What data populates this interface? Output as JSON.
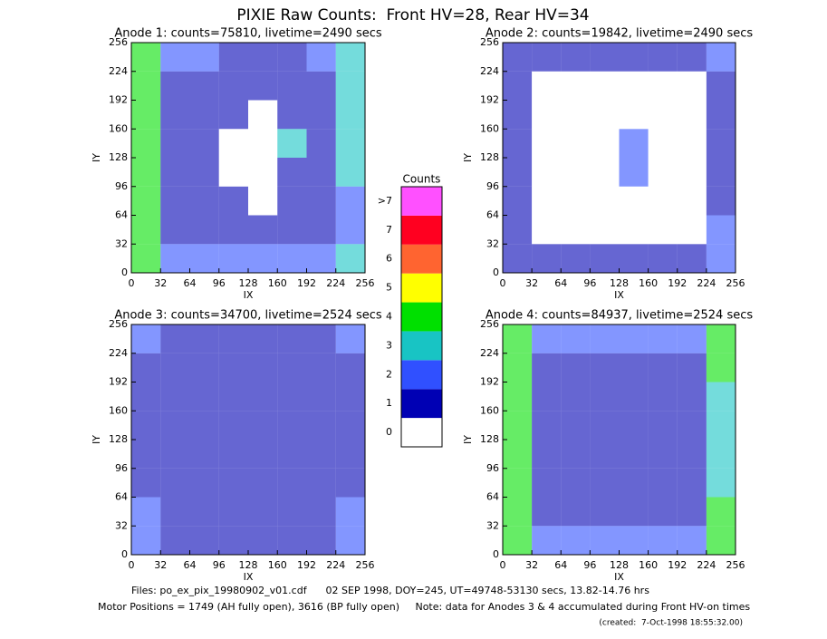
{
  "title": "PIXIE Raw Counts:  Front HV=28, Rear HV=34",
  "chart_data": [
    {
      "type": "heatmap",
      "title": "Anode 1: counts=75810, livetime=2490 secs",
      "xlabel": "IX",
      "ylabel": "IY",
      "xlim": [
        0,
        256
      ],
      "ylim": [
        0,
        256
      ],
      "xticks": [
        0,
        32,
        64,
        96,
        128,
        160,
        192,
        224,
        256
      ],
      "yticks": [
        0,
        32,
        64,
        96,
        128,
        160,
        192,
        224,
        256
      ],
      "z": [
        [
          4,
          2,
          2,
          2,
          2,
          2,
          2,
          3
        ],
        [
          4,
          1,
          1,
          1,
          1,
          1,
          1,
          2
        ],
        [
          4,
          1,
          1,
          1,
          0,
          1,
          1,
          2
        ],
        [
          4,
          1,
          1,
          0,
          0,
          1,
          1,
          3
        ],
        [
          4,
          1,
          1,
          0,
          0,
          3,
          1,
          3
        ],
        [
          4,
          1,
          1,
          1,
          0,
          1,
          1,
          3
        ],
        [
          4,
          1,
          1,
          1,
          1,
          1,
          1,
          3
        ],
        [
          4,
          2,
          2,
          1,
          1,
          1,
          2,
          3
        ]
      ]
    },
    {
      "type": "heatmap",
      "title": "Anode 2: counts=19842, livetime=2490 secs",
      "xlabel": "IX",
      "ylabel": "IY",
      "xlim": [
        0,
        256
      ],
      "ylim": [
        0,
        256
      ],
      "xticks": [
        0,
        32,
        64,
        96,
        128,
        160,
        192,
        224,
        256
      ],
      "yticks": [
        0,
        32,
        64,
        96,
        128,
        160,
        192,
        224,
        256
      ],
      "z": [
        [
          1,
          1,
          1,
          1,
          1,
          1,
          1,
          2
        ],
        [
          1,
          0,
          0,
          0,
          0,
          0,
          0,
          2
        ],
        [
          1,
          0,
          0,
          0,
          0,
          0,
          0,
          1
        ],
        [
          1,
          0,
          0,
          0,
          2,
          0,
          0,
          1
        ],
        [
          1,
          0,
          0,
          0,
          2,
          0,
          0,
          1
        ],
        [
          1,
          0,
          0,
          0,
          0,
          0,
          0,
          1
        ],
        [
          1,
          0,
          0,
          0,
          0,
          0,
          0,
          1
        ],
        [
          1,
          1,
          1,
          1,
          1,
          1,
          1,
          2
        ]
      ]
    },
    {
      "type": "heatmap",
      "title": "Anode 3: counts=34700, livetime=2524 secs",
      "xlabel": "IX",
      "ylabel": "IY",
      "xlim": [
        0,
        256
      ],
      "ylim": [
        0,
        256
      ],
      "xticks": [
        0,
        32,
        64,
        96,
        128,
        160,
        192,
        224,
        256
      ],
      "yticks": [
        0,
        32,
        64,
        96,
        128,
        160,
        192,
        224,
        256
      ],
      "z": [
        [
          2,
          1,
          1,
          1,
          1,
          1,
          1,
          2
        ],
        [
          2,
          1,
          1,
          1,
          1,
          1,
          1,
          2
        ],
        [
          1,
          1,
          1,
          1,
          1,
          1,
          1,
          1
        ],
        [
          1,
          1,
          1,
          1,
          1,
          1,
          1,
          1
        ],
        [
          1,
          1,
          1,
          1,
          1,
          1,
          1,
          1
        ],
        [
          1,
          1,
          1,
          1,
          1,
          1,
          1,
          1
        ],
        [
          1,
          1,
          1,
          1,
          1,
          1,
          1,
          1
        ],
        [
          2,
          1,
          1,
          1,
          1,
          1,
          1,
          2
        ]
      ]
    },
    {
      "type": "heatmap",
      "title": "Anode 4: counts=84937, livetime=2524 secs",
      "xlabel": "IX",
      "ylabel": "IY",
      "xlim": [
        0,
        256
      ],
      "ylim": [
        0,
        256
      ],
      "xticks": [
        0,
        32,
        64,
        96,
        128,
        160,
        192,
        224,
        256
      ],
      "yticks": [
        0,
        32,
        64,
        96,
        128,
        160,
        192,
        224,
        256
      ],
      "z": [
        [
          4,
          2,
          2,
          2,
          2,
          2,
          2,
          4
        ],
        [
          4,
          1,
          1,
          1,
          1,
          1,
          1,
          4
        ],
        [
          4,
          1,
          1,
          1,
          1,
          1,
          1,
          3
        ],
        [
          4,
          1,
          1,
          1,
          1,
          1,
          1,
          3
        ],
        [
          4,
          1,
          1,
          1,
          1,
          1,
          1,
          3
        ],
        [
          4,
          1,
          1,
          1,
          1,
          1,
          1,
          3
        ],
        [
          4,
          1,
          1,
          1,
          1,
          1,
          1,
          4
        ],
        [
          4,
          2,
          2,
          2,
          2,
          2,
          2,
          4
        ]
      ]
    }
  ],
  "colorbar": {
    "title": "Counts",
    "ticks": [
      0,
      1,
      2,
      3,
      4,
      5,
      6,
      7,
      {
        "value": 8,
        "label": ">7"
      }
    ],
    "colors": [
      "#ffffff",
      "#0000b4",
      "#3050ff",
      "#18c4c4",
      "#00e000",
      "#ffff00",
      "#ff6430",
      "#ff0020",
      "#ff50ff"
    ]
  },
  "footer": {
    "line1": "Files: po_ex_pix_19980902_v01.cdf      02 SEP 1998, DOY=245, UT=49748-53130 secs, 13.82-14.76 hrs",
    "line2": "Motor Positions = 1749 (AH fully open), 3616 (BP fully open)     Note: data for Anodes 3 & 4 accumulated during Front HV-on times",
    "created": "(created:  7-Oct-1998 18:55:32.00)"
  }
}
